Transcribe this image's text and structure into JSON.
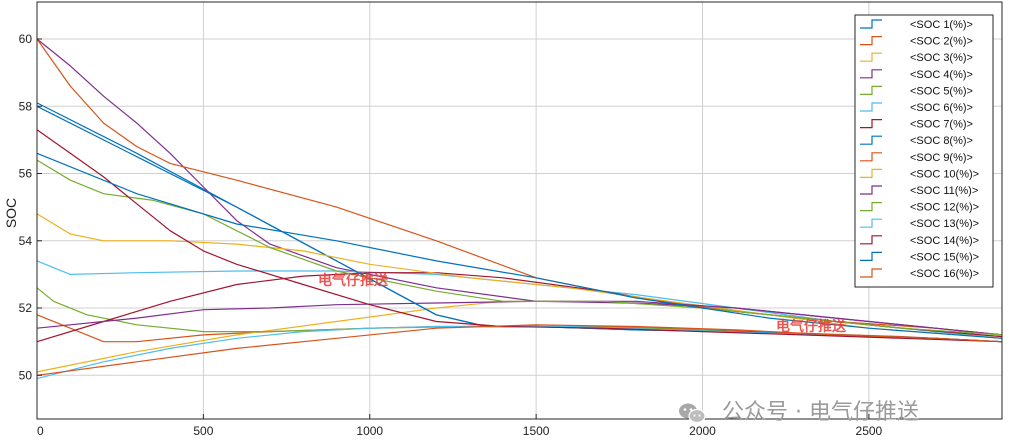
{
  "chart_data": {
    "type": "line",
    "title": "",
    "xlabel": "",
    "ylabel": "SOC",
    "xlim": [
      0,
      2900
    ],
    "ylim": [
      48.7,
      61.1
    ],
    "xticks": [
      0,
      500,
      1000,
      1500,
      2000,
      2500
    ],
    "yticks": [
      50,
      52,
      54,
      56,
      58,
      60
    ],
    "grid": true,
    "legend_position": "top-right",
    "series": [
      {
        "name": "<SOC 1(%)>",
        "color": "#0072BD",
        "x": [
          0,
          300,
          600,
          900,
          1200,
          1350,
          1500,
          1800,
          2100,
          2400,
          2700,
          2900
        ],
        "y": [
          58.1,
          56.6,
          55.0,
          53.4,
          51.8,
          51.45,
          51.45,
          51.35,
          51.3,
          51.2,
          51.1,
          51.0
        ]
      },
      {
        "name": "<SOC 2(%)>",
        "color": "#D95319",
        "x": [
          0,
          100,
          200,
          300,
          500,
          700,
          1000,
          1200,
          1400,
          1700,
          2000,
          2300,
          2600,
          2900
        ],
        "y": [
          51.8,
          51.4,
          51.0,
          51.0,
          51.2,
          51.3,
          51.4,
          51.45,
          51.45,
          51.45,
          51.35,
          51.25,
          51.15,
          51.0
        ]
      },
      {
        "name": "<SOC 3(%)>",
        "color": "#EDB120",
        "x": [
          0,
          300,
          600,
          900,
          1200,
          1400,
          1600,
          1900,
          2100,
          2400,
          2700,
          2900
        ],
        "y": [
          50.1,
          50.7,
          51.2,
          51.6,
          52.0,
          52.2,
          52.2,
          52.1,
          52.0,
          51.6,
          51.3,
          51.1
        ]
      },
      {
        "name": "<SOC 4(%)>",
        "color": "#7E2F8E",
        "x": [
          0,
          100,
          200,
          300,
          400,
          500,
          600,
          700,
          900,
          1200,
          1500,
          1800,
          2100,
          2400,
          2700,
          2900
        ],
        "y": [
          60.0,
          59.2,
          58.3,
          57.5,
          56.6,
          55.6,
          54.6,
          53.9,
          53.2,
          52.6,
          52.2,
          52.15,
          52.0,
          51.7,
          51.4,
          51.2
        ]
      },
      {
        "name": "<SOC 5(%)>",
        "color": "#77AC30",
        "x": [
          0,
          50,
          150,
          300,
          500,
          700,
          1000,
          1300,
          1600,
          1900,
          2100,
          2400,
          2700,
          2900
        ],
        "y": [
          52.6,
          52.2,
          51.8,
          51.5,
          51.3,
          51.3,
          51.4,
          51.45,
          51.45,
          51.4,
          51.3,
          51.2,
          51.1,
          51.0
        ]
      },
      {
        "name": "<SOC 6(%)>",
        "color": "#4DBEEE",
        "x": [
          0,
          100,
          300,
          600,
          900,
          1200,
          1500,
          1800,
          2100,
          2400,
          2700,
          2900
        ],
        "y": [
          53.4,
          53.0,
          53.05,
          53.1,
          53.1,
          53.0,
          52.7,
          52.4,
          52.0,
          51.6,
          51.3,
          51.1
        ]
      },
      {
        "name": "<SOC 7(%)>",
        "color": "#A2142F",
        "x": [
          0,
          200,
          400,
          600,
          800,
          1000,
          1200,
          1400,
          1700,
          2000,
          2300,
          2600,
          2900
        ],
        "y": [
          51.0,
          51.6,
          52.2,
          52.7,
          52.95,
          53.05,
          53.05,
          52.9,
          52.5,
          52.0,
          51.7,
          51.4,
          51.15
        ]
      },
      {
        "name": "<SOC 8(%)>",
        "color": "#0072BD",
        "x": [
          0,
          300,
          600,
          900,
          1200,
          1350,
          1500,
          1800,
          2100,
          2400,
          2700,
          2900
        ],
        "y": [
          58.0,
          56.5,
          55.0,
          53.4,
          51.8,
          51.45,
          51.45,
          51.35,
          51.3,
          51.2,
          51.1,
          51.0
        ]
      },
      {
        "name": "<SOC 9(%)>",
        "color": "#D95319",
        "x": [
          0,
          100,
          200,
          300,
          400,
          600,
          900,
          1200,
          1500,
          1800,
          2100,
          2400,
          2700,
          2900
        ],
        "y": [
          60.0,
          58.6,
          57.5,
          56.8,
          56.3,
          55.8,
          55.0,
          54.0,
          52.9,
          52.3,
          51.9,
          51.6,
          51.4,
          51.2
        ]
      },
      {
        "name": "<SOC 10(%)>",
        "color": "#EDB120",
        "x": [
          0,
          100,
          200,
          400,
          600,
          800,
          1000,
          1300,
          1600,
          1900,
          2200,
          2500,
          2700,
          2900
        ],
        "y": [
          54.8,
          54.2,
          54.0,
          54.0,
          53.9,
          53.7,
          53.3,
          52.9,
          52.6,
          52.2,
          51.8,
          51.4,
          51.25,
          51.1
        ]
      },
      {
        "name": "<SOC 11(%)>",
        "color": "#7E2F8E",
        "x": [
          0,
          300,
          500,
          700,
          900,
          1200,
          1500,
          1800,
          2100,
          2400,
          2700,
          2900
        ],
        "y": [
          51.4,
          51.7,
          51.95,
          52.0,
          52.1,
          52.15,
          52.2,
          52.2,
          52.0,
          51.7,
          51.4,
          51.2
        ]
      },
      {
        "name": "<SOC 12(%)>",
        "color": "#77AC30",
        "x": [
          0,
          100,
          200,
          350,
          500,
          600,
          700,
          900,
          1200,
          1400,
          1700,
          2000,
          2300,
          2600,
          2900
        ],
        "y": [
          56.4,
          55.8,
          55.4,
          55.2,
          54.8,
          54.3,
          53.8,
          53.1,
          52.5,
          52.2,
          52.2,
          52.0,
          51.7,
          51.4,
          51.2
        ]
      },
      {
        "name": "<SOC 13(%)>",
        "color": "#4DBEEE",
        "x": [
          0,
          200,
          400,
          600,
          800,
          1000,
          1200,
          1400,
          1600,
          1900,
          2200,
          2500,
          2900
        ],
        "y": [
          49.9,
          50.4,
          50.8,
          51.1,
          51.3,
          51.4,
          51.45,
          51.45,
          51.45,
          51.35,
          51.25,
          51.15,
          51.0
        ]
      },
      {
        "name": "<SOC 14(%)>",
        "color": "#A2142F",
        "x": [
          0,
          100,
          200,
          300,
          400,
          500,
          600,
          800,
          1000,
          1200,
          1400,
          1700,
          2000,
          2300,
          2600,
          2900
        ],
        "y": [
          57.3,
          56.6,
          55.9,
          55.1,
          54.3,
          53.7,
          53.3,
          52.7,
          52.1,
          51.6,
          51.45,
          51.4,
          51.3,
          51.2,
          51.1,
          51.0
        ]
      },
      {
        "name": "<SOC 15(%)>",
        "color": "#0072BD",
        "x": [
          0,
          300,
          600,
          900,
          1200,
          1500,
          1800,
          2000,
          2200,
          2500,
          2900
        ],
        "y": [
          56.6,
          55.4,
          54.5,
          54.0,
          53.4,
          52.9,
          52.3,
          52.0,
          51.7,
          51.4,
          51.1
        ]
      },
      {
        "name": "<SOC 16(%)>",
        "color": "#D95319",
        "x": [
          0,
          300,
          600,
          900,
          1200,
          1500,
          1800,
          2100,
          2400,
          2700,
          2900
        ],
        "y": [
          50.0,
          50.4,
          50.8,
          51.1,
          51.4,
          51.5,
          51.45,
          51.35,
          51.2,
          51.1,
          51.0
        ]
      }
    ]
  },
  "overlay_labels": [
    "电气仔推送",
    "电气仔推送"
  ],
  "watermark": "公众号 · 电气仔推送"
}
